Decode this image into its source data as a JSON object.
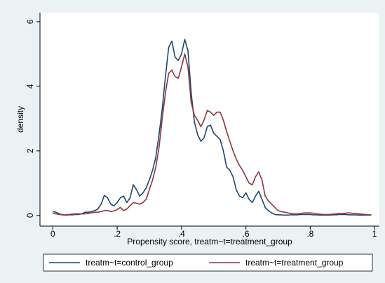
{
  "chart_data": {
    "type": "line",
    "x_label": "Propensity score, treatm~t=treatment_group",
    "y_label": "density",
    "x": [
      0,
      0.01,
      0.02,
      0.03,
      0.04,
      0.05,
      0.06,
      0.07,
      0.08,
      0.09,
      0.1,
      0.11,
      0.12,
      0.13,
      0.14,
      0.15,
      0.16,
      0.17,
      0.18,
      0.19,
      0.2,
      0.21,
      0.22,
      0.23,
      0.24,
      0.25,
      0.26,
      0.27,
      0.28,
      0.29,
      0.3,
      0.31,
      0.32,
      0.33,
      0.34,
      0.35,
      0.36,
      0.37,
      0.38,
      0.39,
      0.4,
      0.41,
      0.42,
      0.43,
      0.44,
      0.45,
      0.46,
      0.47,
      0.48,
      0.49,
      0.5,
      0.51,
      0.52,
      0.53,
      0.54,
      0.55,
      0.56,
      0.57,
      0.58,
      0.59,
      0.6,
      0.61,
      0.62,
      0.63,
      0.64,
      0.65,
      0.66,
      0.67,
      0.68,
      0.69,
      0.7,
      0.71,
      0.72,
      0.73,
      0.74,
      0.75,
      0.76,
      0.77,
      0.78,
      0.79,
      0.8,
      0.81,
      0.82,
      0.83,
      0.84,
      0.85,
      0.86,
      0.87,
      0.88,
      0.89,
      0.9,
      0.91,
      0.92,
      0.93,
      0.94,
      0.95,
      0.96,
      0.97,
      0.98,
      0.99
    ],
    "series": [
      {
        "name": "treatm~t=control_group",
        "color": "#1a476f",
        "values": [
          0.12,
          0.1,
          0.05,
          0.02,
          0.01,
          0.02,
          0.02,
          0.03,
          0.03,
          0.05,
          0.1,
          0.1,
          0.12,
          0.15,
          0.2,
          0.35,
          0.62,
          0.55,
          0.35,
          0.3,
          0.4,
          0.55,
          0.6,
          0.4,
          0.55,
          0.95,
          0.8,
          0.6,
          0.7,
          0.85,
          1.1,
          1.4,
          1.8,
          2.5,
          3.3,
          4.3,
          5.2,
          5.4,
          4.9,
          4.8,
          5.0,
          5.45,
          5.1,
          3.8,
          2.9,
          2.5,
          2.3,
          2.4,
          2.75,
          2.8,
          2.55,
          2.45,
          2.35,
          2.0,
          1.5,
          1.4,
          1.2,
          0.8,
          0.6,
          0.55,
          0.7,
          0.5,
          0.4,
          0.6,
          0.75,
          0.5,
          0.25,
          0.15,
          0.08,
          0.03,
          0.02,
          0.02,
          0.01,
          0.01,
          0.02,
          0.02,
          0.02,
          0.03,
          0.03,
          0.03,
          0.03,
          0.02,
          0.02,
          0.01,
          0.01,
          0.01,
          0.01,
          0.02,
          0.02,
          0.03,
          0.03,
          0.03,
          0.02,
          0.02,
          0.02,
          0.01,
          0.01,
          0.01,
          0.01,
          0.01
        ]
      },
      {
        "name": "treatm~t=treatment_group",
        "color": "#90353b",
        "values": [
          0.06,
          0.05,
          0.03,
          0.02,
          0.02,
          0.03,
          0.04,
          0.05,
          0.05,
          0.05,
          0.05,
          0.06,
          0.08,
          0.1,
          0.1,
          0.12,
          0.15,
          0.15,
          0.12,
          0.14,
          0.18,
          0.25,
          0.15,
          0.2,
          0.3,
          0.4,
          0.38,
          0.35,
          0.4,
          0.5,
          0.8,
          1.1,
          1.5,
          2.1,
          3.0,
          3.8,
          4.4,
          4.5,
          4.3,
          4.25,
          4.6,
          5.0,
          4.6,
          3.5,
          3.1,
          2.95,
          2.75,
          2.95,
          3.25,
          3.2,
          3.1,
          3.2,
          3.2,
          2.95,
          2.6,
          2.3,
          2.0,
          1.75,
          1.55,
          1.4,
          1.2,
          1.0,
          0.95,
          1.2,
          1.35,
          1.1,
          0.6,
          0.45,
          0.35,
          0.25,
          0.15,
          0.12,
          0.1,
          0.08,
          0.06,
          0.05,
          0.05,
          0.06,
          0.08,
          0.08,
          0.08,
          0.07,
          0.05,
          0.04,
          0.03,
          0.03,
          0.03,
          0.04,
          0.05,
          0.06,
          0.06,
          0.07,
          0.08,
          0.07,
          0.06,
          0.05,
          0.04,
          0.03,
          0.02,
          0.02
        ]
      }
    ],
    "xlim": [
      -0.04,
      1.015
    ],
    "ylim": [
      -0.33,
      6.28
    ],
    "xticks": [
      0,
      {
        "value": 0.2,
        "label": ".2"
      },
      {
        "value": 0.4,
        "label": ".4"
      },
      {
        "value": 0.6,
        "label": ".6"
      },
      {
        "value": 0.8,
        "label": ".8"
      },
      1
    ],
    "yticks": [
      0,
      2,
      4,
      6
    ],
    "grid": false,
    "legend": "bottom"
  }
}
